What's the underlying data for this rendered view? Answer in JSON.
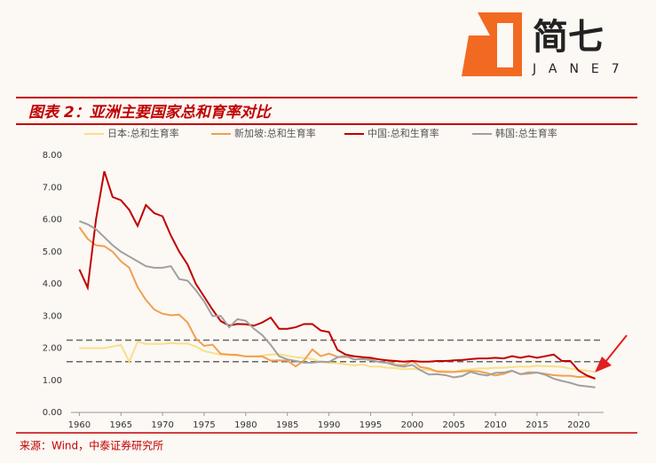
{
  "logo": {
    "name": "简七",
    "sub": "JANE7"
  },
  "chart_data": {
    "type": "line",
    "title": "图表 2：亚洲主要国家总和育率对比",
    "source": "来源：Wind，中泰证券研究所",
    "x": [
      1960,
      1961,
      1962,
      1963,
      1964,
      1965,
      1966,
      1967,
      1968,
      1969,
      1970,
      1971,
      1972,
      1973,
      1974,
      1975,
      1976,
      1977,
      1978,
      1979,
      1980,
      1981,
      1982,
      1983,
      1984,
      1985,
      1986,
      1987,
      1988,
      1989,
      1990,
      1991,
      1992,
      1993,
      1994,
      1995,
      1996,
      1997,
      1998,
      1999,
      2000,
      2001,
      2002,
      2003,
      2004,
      2005,
      2006,
      2007,
      2008,
      2009,
      2010,
      2011,
      2012,
      2013,
      2014,
      2015,
      2016,
      2017,
      2018,
      2019,
      2020,
      2021,
      2022
    ],
    "series": [
      {
        "name": "日本:总和生育率",
        "color": "#f7e08a",
        "values": [
          2.0,
          2.0,
          2.0,
          2.0,
          2.05,
          2.1,
          1.58,
          2.2,
          2.13,
          2.13,
          2.13,
          2.16,
          2.14,
          2.14,
          2.05,
          1.91,
          1.85,
          1.8,
          1.79,
          1.77,
          1.75,
          1.74,
          1.77,
          1.8,
          1.81,
          1.76,
          1.72,
          1.69,
          1.66,
          1.57,
          1.54,
          1.53,
          1.5,
          1.46,
          1.5,
          1.42,
          1.43,
          1.39,
          1.38,
          1.34,
          1.36,
          1.33,
          1.32,
          1.29,
          1.29,
          1.26,
          1.32,
          1.34,
          1.37,
          1.37,
          1.39,
          1.39,
          1.41,
          1.43,
          1.42,
          1.45,
          1.44,
          1.43,
          1.42,
          1.36,
          1.33,
          1.3,
          1.26
        ]
      },
      {
        "name": "新加坡:总和生育率",
        "color": "#f0a050",
        "values": [
          5.76,
          5.4,
          5.2,
          5.17,
          5.0,
          4.7,
          4.5,
          3.9,
          3.5,
          3.2,
          3.07,
          3.02,
          3.04,
          2.8,
          2.3,
          2.07,
          2.11,
          1.82,
          1.8,
          1.79,
          1.74,
          1.74,
          1.74,
          1.61,
          1.62,
          1.61,
          1.43,
          1.62,
          1.96,
          1.75,
          1.83,
          1.73,
          1.72,
          1.74,
          1.71,
          1.67,
          1.66,
          1.61,
          1.48,
          1.47,
          1.6,
          1.41,
          1.37,
          1.27,
          1.26,
          1.26,
          1.28,
          1.29,
          1.28,
          1.22,
          1.15,
          1.2,
          1.29,
          1.19,
          1.25,
          1.24,
          1.2,
          1.16,
          1.14,
          1.14,
          1.1,
          1.12,
          1.05
        ]
      },
      {
        "name": "中国:总和生育率",
        "color": "#c00000",
        "values": [
          4.45,
          3.88,
          6.0,
          7.5,
          6.7,
          6.6,
          6.3,
          5.8,
          6.45,
          6.2,
          6.1,
          5.5,
          5.0,
          4.6,
          4.0,
          3.6,
          3.2,
          2.84,
          2.7,
          2.75,
          2.74,
          2.7,
          2.8,
          2.95,
          2.6,
          2.6,
          2.65,
          2.75,
          2.75,
          2.55,
          2.5,
          1.95,
          1.8,
          1.75,
          1.72,
          1.7,
          1.65,
          1.62,
          1.6,
          1.58,
          1.6,
          1.58,
          1.58,
          1.6,
          1.6,
          1.62,
          1.63,
          1.66,
          1.68,
          1.68,
          1.7,
          1.68,
          1.75,
          1.7,
          1.75,
          1.7,
          1.75,
          1.8,
          1.6,
          1.6,
          1.3,
          1.15,
          1.05
        ]
      },
      {
        "name": "韩国:总生育率",
        "color": "#a0a0a0",
        "values": [
          5.95,
          5.85,
          5.7,
          5.45,
          5.2,
          5.0,
          4.85,
          4.7,
          4.55,
          4.5,
          4.5,
          4.55,
          4.15,
          4.1,
          3.8,
          3.45,
          3.0,
          3.0,
          2.65,
          2.9,
          2.85,
          2.6,
          2.4,
          2.1,
          1.75,
          1.65,
          1.6,
          1.55,
          1.55,
          1.58,
          1.57,
          1.71,
          1.76,
          1.65,
          1.66,
          1.63,
          1.57,
          1.54,
          1.46,
          1.42,
          1.48,
          1.31,
          1.18,
          1.19,
          1.16,
          1.09,
          1.13,
          1.26,
          1.19,
          1.15,
          1.23,
          1.24,
          1.3,
          1.19,
          1.21,
          1.24,
          1.17,
          1.05,
          0.98,
          0.92,
          0.84,
          0.81,
          0.78
        ]
      }
    ],
    "reference_lines": [
      2.25,
      1.58
    ],
    "xlim": [
      1959,
      2023
    ],
    "xticks": [
      1960,
      1965,
      1970,
      1975,
      1980,
      1985,
      1990,
      1995,
      2000,
      2005,
      2010,
      2015,
      2020
    ],
    "ylim": [
      0,
      8
    ],
    "yticks": [
      {
        "value": 0,
        "label": "0.00"
      },
      {
        "value": 1,
        "label": "1.00"
      },
      {
        "value": 2,
        "label": "2.00"
      },
      {
        "value": 3,
        "label": "3.00"
      },
      {
        "value": 4,
        "label": "4.00"
      },
      {
        "value": 5,
        "label": "5.00"
      },
      {
        "value": 6,
        "label": "6.00"
      },
      {
        "value": 7,
        "label": "7.00"
      },
      {
        "value": 8,
        "label": "8.00"
      }
    ]
  }
}
